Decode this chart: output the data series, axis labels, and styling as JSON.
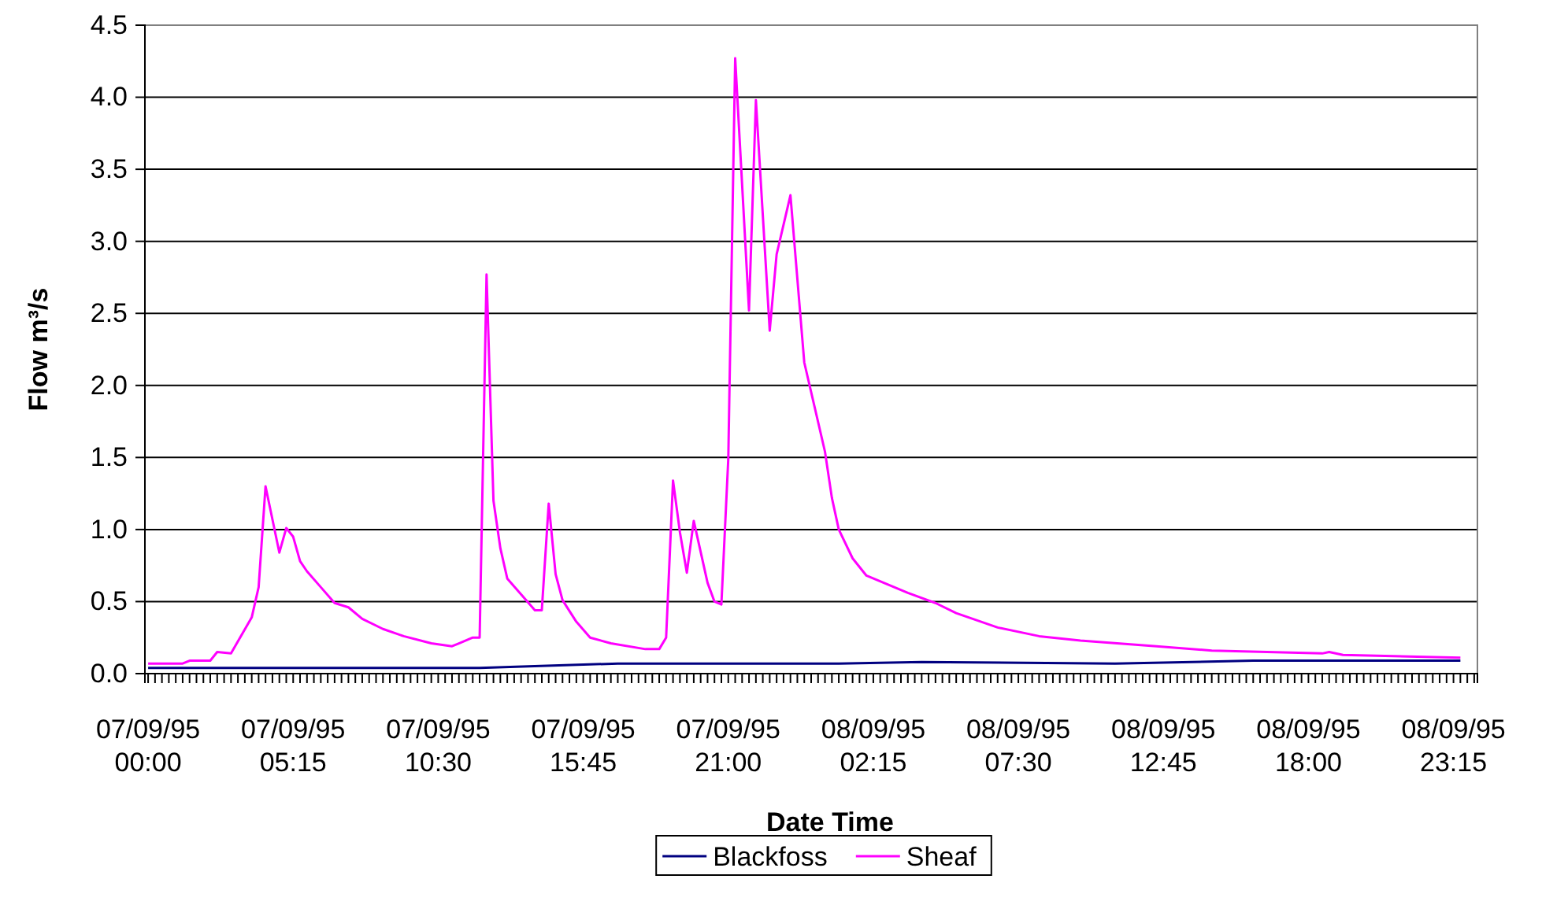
{
  "chart_data": {
    "type": "line",
    "xlabel": "Date Time",
    "ylabel": "Flow m³/s",
    "xlim": [
      "1995-09-06T23:53",
      "1995-09-09T00:07"
    ],
    "ylim": [
      0,
      4.5
    ],
    "yticks": [
      {
        "value": 0,
        "label": "0.0"
      },
      {
        "value": 0.5,
        "label": "0.5"
      },
      {
        "value": 1,
        "label": "1.0"
      },
      {
        "value": 1.5,
        "label": "1.5"
      },
      {
        "value": 2,
        "label": "2.0"
      },
      {
        "value": 2.5,
        "label": "2.5"
      },
      {
        "value": 3,
        "label": "3.0"
      },
      {
        "value": 3.5,
        "label": "3.5"
      },
      {
        "value": 4,
        "label": "4.0"
      },
      {
        "value": 4.5,
        "label": "4.5"
      }
    ],
    "xticks": [
      {
        "value": "1995-09-07T00:00",
        "label": "07/09/95 00:00"
      },
      {
        "value": "1995-09-07T00:15",
        "label": null
      },
      {
        "value": "1995-09-07T00:30",
        "label": null
      },
      {
        "value": "1995-09-07T00:45",
        "label": null
      },
      {
        "value": "1995-09-07T01:00",
        "label": null
      },
      {
        "value": "1995-09-07T01:15",
        "label": null
      },
      {
        "value": "1995-09-07T01:30",
        "label": null
      },
      {
        "value": "1995-09-07T01:45",
        "label": null
      },
      {
        "value": "1995-09-07T02:00",
        "label": null
      },
      {
        "value": "1995-09-07T02:15",
        "label": null
      },
      {
        "value": "1995-09-07T02:30",
        "label": null
      },
      {
        "value": "1995-09-07T02:45",
        "label": null
      },
      {
        "value": "1995-09-07T03:00",
        "label": null
      },
      {
        "value": "1995-09-07T03:15",
        "label": null
      },
      {
        "value": "1995-09-07T03:30",
        "label": null
      },
      {
        "value": "1995-09-07T03:45",
        "label": null
      },
      {
        "value": "1995-09-07T04:00",
        "label": null
      },
      {
        "value": "1995-09-07T04:15",
        "label": null
      },
      {
        "value": "1995-09-07T04:30",
        "label": null
      },
      {
        "value": "1995-09-07T04:45",
        "label": null
      },
      {
        "value": "1995-09-07T05:00",
        "label": null
      },
      {
        "value": "1995-09-07T05:15",
        "label": "07/09/95 05:15"
      },
      {
        "value": "1995-09-07T05:30",
        "label": null
      },
      {
        "value": "1995-09-07T05:45",
        "label": null
      },
      {
        "value": "1995-09-07T06:00",
        "label": null
      },
      {
        "value": "1995-09-07T06:15",
        "label": null
      },
      {
        "value": "1995-09-07T06:30",
        "label": null
      },
      {
        "value": "1995-09-07T06:45",
        "label": null
      },
      {
        "value": "1995-09-07T07:00",
        "label": null
      },
      {
        "value": "1995-09-07T07:15",
        "label": null
      },
      {
        "value": "1995-09-07T07:30",
        "label": null
      },
      {
        "value": "1995-09-07T07:45",
        "label": null
      },
      {
        "value": "1995-09-07T08:00",
        "label": null
      },
      {
        "value": "1995-09-07T08:15",
        "label": null
      },
      {
        "value": "1995-09-07T08:30",
        "label": null
      },
      {
        "value": "1995-09-07T08:45",
        "label": null
      },
      {
        "value": "1995-09-07T09:00",
        "label": null
      },
      {
        "value": "1995-09-07T09:15",
        "label": null
      },
      {
        "value": "1995-09-07T09:30",
        "label": null
      },
      {
        "value": "1995-09-07T09:45",
        "label": null
      },
      {
        "value": "1995-09-07T10:00",
        "label": null
      },
      {
        "value": "1995-09-07T10:15",
        "label": null
      },
      {
        "value": "1995-09-07T10:30",
        "label": "07/09/95 10:30"
      },
      {
        "value": "1995-09-07T10:45",
        "label": null
      },
      {
        "value": "1995-09-07T11:00",
        "label": null
      },
      {
        "value": "1995-09-07T11:15",
        "label": null
      },
      {
        "value": "1995-09-07T11:30",
        "label": null
      },
      {
        "value": "1995-09-07T11:45",
        "label": null
      },
      {
        "value": "1995-09-07T12:00",
        "label": null
      },
      {
        "value": "1995-09-07T12:15",
        "label": null
      },
      {
        "value": "1995-09-07T12:30",
        "label": null
      },
      {
        "value": "1995-09-07T12:45",
        "label": null
      },
      {
        "value": "1995-09-07T13:00",
        "label": null
      },
      {
        "value": "1995-09-07T13:15",
        "label": null
      },
      {
        "value": "1995-09-07T13:30",
        "label": null
      },
      {
        "value": "1995-09-07T13:45",
        "label": null
      },
      {
        "value": "1995-09-07T14:00",
        "label": null
      },
      {
        "value": "1995-09-07T14:15",
        "label": null
      },
      {
        "value": "1995-09-07T14:30",
        "label": null
      },
      {
        "value": "1995-09-07T14:45",
        "label": null
      },
      {
        "value": "1995-09-07T15:00",
        "label": null
      },
      {
        "value": "1995-09-07T15:15",
        "label": null
      },
      {
        "value": "1995-09-07T15:30",
        "label": null
      },
      {
        "value": "1995-09-07T15:45",
        "label": "07/09/95 15:45"
      },
      {
        "value": "1995-09-07T16:00",
        "label": null
      },
      {
        "value": "1995-09-07T16:15",
        "label": null
      },
      {
        "value": "1995-09-07T16:30",
        "label": null
      },
      {
        "value": "1995-09-07T16:45",
        "label": null
      },
      {
        "value": "1995-09-07T17:00",
        "label": null
      },
      {
        "value": "1995-09-07T17:15",
        "label": null
      },
      {
        "value": "1995-09-07T17:30",
        "label": null
      },
      {
        "value": "1995-09-07T17:45",
        "label": null
      },
      {
        "value": "1995-09-07T18:00",
        "label": null
      },
      {
        "value": "1995-09-07T18:15",
        "label": null
      },
      {
        "value": "1995-09-07T18:30",
        "label": null
      },
      {
        "value": "1995-09-07T18:45",
        "label": null
      },
      {
        "value": "1995-09-07T19:00",
        "label": null
      },
      {
        "value": "1995-09-07T19:15",
        "label": null
      },
      {
        "value": "1995-09-07T19:30",
        "label": null
      },
      {
        "value": "1995-09-07T19:45",
        "label": null
      },
      {
        "value": "1995-09-07T20:00",
        "label": null
      },
      {
        "value": "1995-09-07T20:15",
        "label": null
      },
      {
        "value": "1995-09-07T20:30",
        "label": null
      },
      {
        "value": "1995-09-07T20:45",
        "label": null
      },
      {
        "value": "1995-09-07T21:00",
        "label": "07/09/95 21:00"
      },
      {
        "value": "1995-09-07T21:15",
        "label": null
      },
      {
        "value": "1995-09-07T21:30",
        "label": null
      },
      {
        "value": "1995-09-07T21:45",
        "label": null
      },
      {
        "value": "1995-09-07T22:00",
        "label": null
      },
      {
        "value": "1995-09-07T22:15",
        "label": null
      },
      {
        "value": "1995-09-07T22:30",
        "label": null
      },
      {
        "value": "1995-09-07T22:45",
        "label": null
      },
      {
        "value": "1995-09-07T23:00",
        "label": null
      },
      {
        "value": "1995-09-07T23:15",
        "label": null
      },
      {
        "value": "1995-09-07T23:30",
        "label": null
      },
      {
        "value": "1995-09-07T23:45",
        "label": null
      },
      {
        "value": "1995-09-08T00:00",
        "label": null
      },
      {
        "value": "1995-09-08T00:15",
        "label": null
      },
      {
        "value": "1995-09-08T00:30",
        "label": null
      },
      {
        "value": "1995-09-08T00:45",
        "label": null
      },
      {
        "value": "1995-09-08T01:00",
        "label": null
      },
      {
        "value": "1995-09-08T01:15",
        "label": null
      },
      {
        "value": "1995-09-08T01:30",
        "label": null
      },
      {
        "value": "1995-09-08T01:45",
        "label": null
      },
      {
        "value": "1995-09-08T02:00",
        "label": null
      },
      {
        "value": "1995-09-08T02:15",
        "label": "08/09/95 02:15"
      },
      {
        "value": "1995-09-08T02:30",
        "label": null
      },
      {
        "value": "1995-09-08T02:45",
        "label": null
      },
      {
        "value": "1995-09-08T03:00",
        "label": null
      },
      {
        "value": "1995-09-08T03:15",
        "label": null
      },
      {
        "value": "1995-09-08T03:30",
        "label": null
      },
      {
        "value": "1995-09-08T03:45",
        "label": null
      },
      {
        "value": "1995-09-08T04:00",
        "label": null
      },
      {
        "value": "1995-09-08T04:15",
        "label": null
      },
      {
        "value": "1995-09-08T04:30",
        "label": null
      },
      {
        "value": "1995-09-08T04:45",
        "label": null
      },
      {
        "value": "1995-09-08T05:00",
        "label": null
      },
      {
        "value": "1995-09-08T05:15",
        "label": null
      },
      {
        "value": "1995-09-08T05:30",
        "label": null
      },
      {
        "value": "1995-09-08T05:45",
        "label": null
      },
      {
        "value": "1995-09-08T06:00",
        "label": null
      },
      {
        "value": "1995-09-08T06:15",
        "label": null
      },
      {
        "value": "1995-09-08T06:30",
        "label": null
      },
      {
        "value": "1995-09-08T06:45",
        "label": null
      },
      {
        "value": "1995-09-08T07:00",
        "label": null
      },
      {
        "value": "1995-09-08T07:15",
        "label": null
      },
      {
        "value": "1995-09-08T07:30",
        "label": "08/09/95 07:30"
      },
      {
        "value": "1995-09-08T07:45",
        "label": null
      },
      {
        "value": "1995-09-08T08:00",
        "label": null
      },
      {
        "value": "1995-09-08T08:15",
        "label": null
      },
      {
        "value": "1995-09-08T08:30",
        "label": null
      },
      {
        "value": "1995-09-08T08:45",
        "label": null
      },
      {
        "value": "1995-09-08T09:00",
        "label": null
      },
      {
        "value": "1995-09-08T09:15",
        "label": null
      },
      {
        "value": "1995-09-08T09:30",
        "label": null
      },
      {
        "value": "1995-09-08T09:45",
        "label": null
      },
      {
        "value": "1995-09-08T10:00",
        "label": null
      },
      {
        "value": "1995-09-08T10:15",
        "label": null
      },
      {
        "value": "1995-09-08T10:30",
        "label": null
      },
      {
        "value": "1995-09-08T10:45",
        "label": null
      },
      {
        "value": "1995-09-08T11:00",
        "label": null
      },
      {
        "value": "1995-09-08T11:15",
        "label": null
      },
      {
        "value": "1995-09-08T11:30",
        "label": null
      },
      {
        "value": "1995-09-08T11:45",
        "label": null
      },
      {
        "value": "1995-09-08T12:00",
        "label": null
      },
      {
        "value": "1995-09-08T12:15",
        "label": null
      },
      {
        "value": "1995-09-08T12:30",
        "label": null
      },
      {
        "value": "1995-09-08T12:45",
        "label": "08/09/95 12:45"
      },
      {
        "value": "1995-09-08T13:00",
        "label": null
      },
      {
        "value": "1995-09-08T13:15",
        "label": null
      },
      {
        "value": "1995-09-08T13:30",
        "label": null
      },
      {
        "value": "1995-09-08T13:45",
        "label": null
      },
      {
        "value": "1995-09-08T14:00",
        "label": null
      },
      {
        "value": "1995-09-08T14:15",
        "label": null
      },
      {
        "value": "1995-09-08T14:30",
        "label": null
      },
      {
        "value": "1995-09-08T14:45",
        "label": null
      },
      {
        "value": "1995-09-08T15:00",
        "label": null
      },
      {
        "value": "1995-09-08T15:15",
        "label": null
      },
      {
        "value": "1995-09-08T15:30",
        "label": null
      },
      {
        "value": "1995-09-08T15:45",
        "label": null
      },
      {
        "value": "1995-09-08T16:00",
        "label": null
      },
      {
        "value": "1995-09-08T16:15",
        "label": null
      },
      {
        "value": "1995-09-08T16:30",
        "label": null
      },
      {
        "value": "1995-09-08T16:45",
        "label": null
      },
      {
        "value": "1995-09-08T17:00",
        "label": null
      },
      {
        "value": "1995-09-08T17:15",
        "label": null
      },
      {
        "value": "1995-09-08T17:30",
        "label": null
      },
      {
        "value": "1995-09-08T17:45",
        "label": null
      },
      {
        "value": "1995-09-08T18:00",
        "label": "08/09/95 18:00"
      },
      {
        "value": "1995-09-08T18:15",
        "label": null
      },
      {
        "value": "1995-09-08T18:30",
        "label": null
      },
      {
        "value": "1995-09-08T18:45",
        "label": null
      },
      {
        "value": "1995-09-08T19:00",
        "label": null
      },
      {
        "value": "1995-09-08T19:15",
        "label": null
      },
      {
        "value": "1995-09-08T19:30",
        "label": null
      },
      {
        "value": "1995-09-08T19:45",
        "label": null
      },
      {
        "value": "1995-09-08T20:00",
        "label": null
      },
      {
        "value": "1995-09-08T20:15",
        "label": null
      },
      {
        "value": "1995-09-08T20:30",
        "label": null
      },
      {
        "value": "1995-09-08T20:45",
        "label": null
      },
      {
        "value": "1995-09-08T21:00",
        "label": null
      },
      {
        "value": "1995-09-08T21:15",
        "label": null
      },
      {
        "value": "1995-09-08T21:30",
        "label": null
      },
      {
        "value": "1995-09-08T21:45",
        "label": null
      },
      {
        "value": "1995-09-08T22:00",
        "label": null
      },
      {
        "value": "1995-09-08T22:15",
        "label": null
      },
      {
        "value": "1995-09-08T22:30",
        "label": null
      },
      {
        "value": "1995-09-08T22:45",
        "label": null
      },
      {
        "value": "1995-09-08T23:00",
        "label": null
      },
      {
        "value": "1995-09-08T23:15",
        "label": "08/09/95 23:15"
      },
      {
        "value": "1995-09-08T23:30",
        "label": null
      },
      {
        "value": "1995-09-08T23:45",
        "label": null
      },
      {
        "value": "1995-09-09T00:00",
        "label": null
      }
    ],
    "grid": "y",
    "legend": "bottom",
    "marker": "none",
    "line_style": "solid",
    "series": [
      {
        "name": "Blackfoss",
        "color": "#000080",
        "x": [
          "1995-09-07T00:00",
          "1995-09-07T12:00",
          "1995-09-07T17:00",
          "1995-09-08T01:00",
          "1995-09-08T04:00",
          "1995-09-08T11:00",
          "1995-09-08T16:00",
          "1995-09-08T23:30"
        ],
        "values": [
          0.04,
          0.04,
          0.07,
          0.07,
          0.08,
          0.07,
          0.09,
          0.09
        ]
      },
      {
        "name": "Sheaf",
        "color": "#ff00ff",
        "x": [
          "1995-09-07T00:00",
          "1995-09-07T01:15",
          "1995-09-07T01:30",
          "1995-09-07T02:15",
          "1995-09-07T02:30",
          "1995-09-07T03:00",
          "1995-09-07T03:45",
          "1995-09-07T04:00",
          "1995-09-07T04:15",
          "1995-09-07T04:45",
          "1995-09-07T05:00",
          "1995-09-07T05:15",
          "1995-09-07T05:30",
          "1995-09-07T05:45",
          "1995-09-07T06:15",
          "1995-09-07T06:45",
          "1995-09-07T07:15",
          "1995-09-07T07:45",
          "1995-09-07T08:30",
          "1995-09-07T09:15",
          "1995-09-07T10:15",
          "1995-09-07T11:00",
          "1995-09-07T11:15",
          "1995-09-07T11:45",
          "1995-09-07T12:00",
          "1995-09-07T12:15",
          "1995-09-07T12:30",
          "1995-09-07T12:45",
          "1995-09-07T13:00",
          "1995-09-07T14:00",
          "1995-09-07T14:15",
          "1995-09-07T14:30",
          "1995-09-07T14:45",
          "1995-09-07T15:00",
          "1995-09-07T15:30",
          "1995-09-07T16:00",
          "1995-09-07T16:45",
          "1995-09-07T18:00",
          "1995-09-07T18:30",
          "1995-09-07T18:45",
          "1995-09-07T19:00",
          "1995-09-07T19:15",
          "1995-09-07T19:30",
          "1995-09-07T19:45",
          "1995-09-07T20:15",
          "1995-09-07T20:30",
          "1995-09-07T20:45",
          "1995-09-07T21:00",
          "1995-09-07T21:15",
          "1995-09-07T21:45",
          "1995-09-07T22:00",
          "1995-09-07T22:30",
          "1995-09-07T22:45",
          "1995-09-07T23:15",
          "1995-09-07T23:45",
          "1995-09-08T00:30",
          "1995-09-08T00:45",
          "1995-09-08T01:00",
          "1995-09-08T01:30",
          "1995-09-08T02:00",
          "1995-09-08T03:30",
          "1995-09-08T04:30",
          "1995-09-08T05:15",
          "1995-09-08T06:45",
          "1995-09-08T08:15",
          "1995-09-08T09:45",
          "1995-09-08T12:30",
          "1995-09-08T14:30",
          "1995-09-08T18:30",
          "1995-09-08T18:45",
          "1995-09-08T19:15",
          "1995-09-08T23:30"
        ],
        "values": [
          0.07,
          0.07,
          0.09,
          0.09,
          0.15,
          0.14,
          0.39,
          0.6,
          1.3,
          0.84,
          1.01,
          0.95,
          0.78,
          0.71,
          0.6,
          0.49,
          0.46,
          0.38,
          0.31,
          0.26,
          0.21,
          0.19,
          0.21,
          0.25,
          0.25,
          2.77,
          1.2,
          0.87,
          0.66,
          0.44,
          0.44,
          1.18,
          0.69,
          0.51,
          0.36,
          0.25,
          0.21,
          0.17,
          0.17,
          0.25,
          1.34,
          0.98,
          0.7,
          1.06,
          0.63,
          0.5,
          0.48,
          1.49,
          4.27,
          2.52,
          3.98,
          2.38,
          2.91,
          3.32,
          2.16,
          1.54,
          1.22,
          1.0,
          0.8,
          0.68,
          0.56,
          0.49,
          0.42,
          0.32,
          0.26,
          0.23,
          0.19,
          0.16,
          0.14,
          0.15,
          0.13,
          0.11
        ]
      }
    ]
  }
}
